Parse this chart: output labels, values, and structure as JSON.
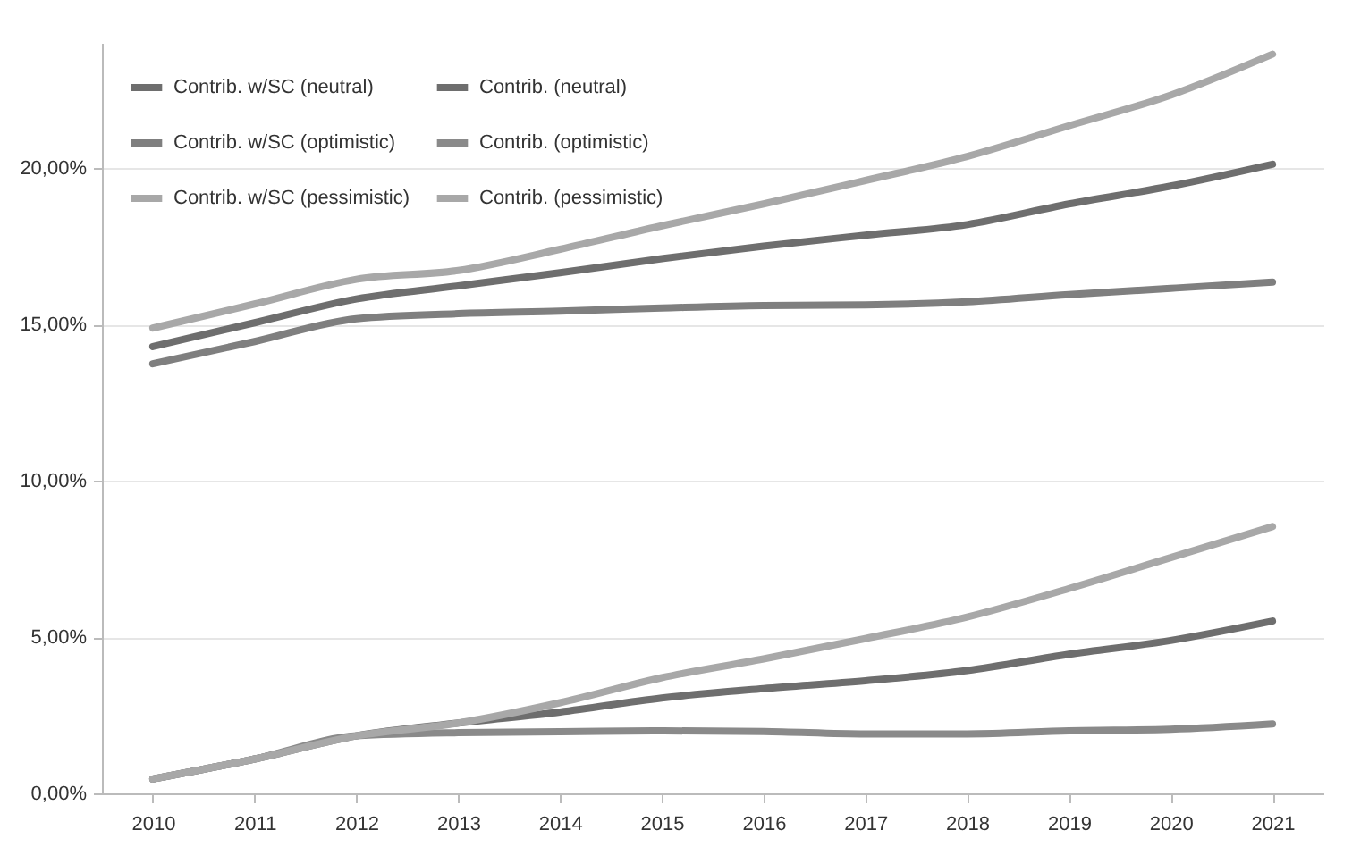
{
  "chart_data": {
    "type": "line",
    "categories": [
      "2010",
      "2011",
      "2012",
      "2013",
      "2014",
      "2015",
      "2016",
      "2017",
      "2018",
      "2019",
      "2020",
      "2021"
    ],
    "series": [
      {
        "name": "Contrib. w/SC (neutral)",
        "color": "#6e6e6e",
        "values": [
          14.29,
          15.05,
          15.81,
          16.23,
          16.65,
          17.1,
          17.5,
          17.85,
          18.19,
          18.85,
          19.42,
          20.12
        ]
      },
      {
        "name": "Contrib. w/SC (optimistic)",
        "color": "#7f7f7f",
        "values": [
          13.74,
          14.45,
          15.18,
          15.34,
          15.42,
          15.52,
          15.6,
          15.62,
          15.72,
          15.95,
          16.15,
          16.35
        ]
      },
      {
        "name": "Contrib. w/SC (pessimistic)",
        "color": "#a8a8a8",
        "values": [
          14.88,
          15.65,
          16.44,
          16.72,
          17.4,
          18.15,
          18.85,
          19.6,
          20.37,
          21.35,
          22.33,
          23.64
        ]
      },
      {
        "name": "Contrib. (neutral)",
        "color": "#6e6e6e",
        "values": [
          0.46,
          1.1,
          1.84,
          2.25,
          2.6,
          3.05,
          3.35,
          3.6,
          3.93,
          4.45,
          4.89,
          5.51
        ]
      },
      {
        "name": "Contrib. (optimistic)",
        "color": "#8a8a8a",
        "values": [
          0.46,
          1.1,
          1.84,
          1.94,
          1.97,
          2.0,
          1.98,
          1.9,
          1.9,
          2.0,
          2.05,
          2.22
        ]
      },
      {
        "name": "Contrib. (pessimistic)",
        "color": "#a8a8a8",
        "values": [
          0.46,
          1.1,
          1.84,
          2.25,
          2.9,
          3.7,
          4.3,
          4.95,
          5.64,
          6.55,
          7.54,
          8.53
        ]
      }
    ],
    "ylim": [
      0,
      24
    ],
    "yticks": [
      {
        "value": 0,
        "label": "0,00%"
      },
      {
        "value": 5,
        "label": "5,00%"
      },
      {
        "value": 10,
        "label": "10,00%"
      },
      {
        "value": 15,
        "label": "15,00%"
      },
      {
        "value": 20,
        "label": "20,00%"
      }
    ],
    "grid": "y",
    "legend": "top left"
  }
}
